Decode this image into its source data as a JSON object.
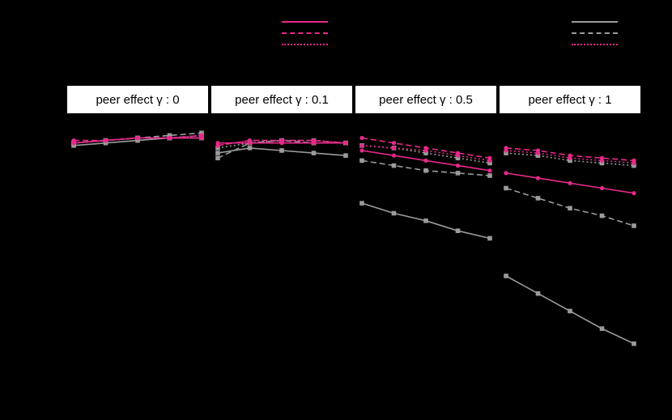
{
  "colors": {
    "background": "#000000",
    "strip_background": "#ffffff",
    "strip_text": "#000000",
    "pink": "#e7298a",
    "gray": "#9b9b9b"
  },
  "legend": {
    "left_keys": [
      {
        "color": "#e7298a",
        "linetype": "solid"
      },
      {
        "color": "#e7298a",
        "linetype": "dashed"
      },
      {
        "color": "#e7298a",
        "linetype": "dotted"
      }
    ],
    "right_keys": [
      {
        "color": "#9b9b9b",
        "linetype": "solid"
      },
      {
        "color": "#9b9b9b",
        "linetype": "dashed"
      },
      {
        "color": "#e7298a",
        "linetype": "dotted"
      }
    ]
  },
  "chart_data": {
    "type": "line",
    "x": [
      1,
      2,
      3,
      4,
      5
    ],
    "ylim": [
      0,
      1
    ],
    "series_defs": [
      {
        "id": "gray-solid",
        "color": "#9b9b9b",
        "linetype": "solid",
        "marker": "square"
      },
      {
        "id": "gray-dashed",
        "color": "#9b9b9b",
        "linetype": "dashed",
        "marker": "square"
      },
      {
        "id": "gray-dotted",
        "color": "#9b9b9b",
        "linetype": "dotted",
        "marker": "square"
      },
      {
        "id": "pink-solid",
        "color": "#e7298a",
        "linetype": "solid",
        "marker": "circle"
      },
      {
        "id": "pink-dashed",
        "color": "#e7298a",
        "linetype": "dashed",
        "marker": "circle"
      },
      {
        "id": "pink-dotted",
        "color": "#e7298a",
        "linetype": "dotted",
        "marker": "circle"
      }
    ],
    "facets": [
      {
        "label": "peer effect γ : 0",
        "values": {
          "pink-solid": [
            0.93,
            0.94,
            0.95,
            0.95,
            0.95
          ],
          "pink-dashed": [
            0.94,
            0.94,
            0.95,
            0.95,
            0.96
          ],
          "pink-dotted": [
            0.93,
            0.94,
            0.95,
            0.95,
            0.96
          ],
          "gray-solid": [
            0.92,
            0.93,
            0.94,
            0.95,
            0.95
          ],
          "gray-dashed": [
            0.93,
            0.94,
            0.95,
            0.96,
            0.97
          ],
          "gray-dotted": [
            0.93,
            0.94,
            0.95,
            0.95,
            0.96
          ]
        }
      },
      {
        "label": "peer effect γ : 0.1",
        "values": {
          "pink-solid": [
            0.93,
            0.93,
            0.93,
            0.93,
            0.93
          ],
          "pink-dashed": [
            0.92,
            0.94,
            0.94,
            0.94,
            0.93
          ],
          "pink-dotted": [
            0.92,
            0.94,
            0.94,
            0.94,
            0.93
          ],
          "gray-solid": [
            0.89,
            0.91,
            0.9,
            0.89,
            0.88
          ],
          "gray-dashed": [
            0.87,
            0.93,
            0.94,
            0.93,
            0.93
          ],
          "gray-dotted": [
            0.91,
            0.93,
            0.94,
            0.94,
            0.93
          ]
        }
      },
      {
        "label": "peer effect γ : 0.5",
        "values": {
          "pink-solid": [
            0.9,
            0.88,
            0.86,
            0.84,
            0.82
          ],
          "pink-dashed": [
            0.95,
            0.93,
            0.91,
            0.89,
            0.87
          ],
          "pink-dotted": [
            0.92,
            0.91,
            0.9,
            0.88,
            0.86
          ],
          "gray-solid": [
            0.69,
            0.65,
            0.62,
            0.58,
            0.55
          ],
          "gray-dashed": [
            0.86,
            0.84,
            0.82,
            0.81,
            0.8
          ],
          "gray-dotted": [
            0.92,
            0.91,
            0.89,
            0.87,
            0.85
          ]
        }
      },
      {
        "label": "peer effect γ : 1",
        "values": {
          "pink-solid": [
            0.81,
            0.79,
            0.77,
            0.75,
            0.73
          ],
          "pink-dashed": [
            0.91,
            0.9,
            0.88,
            0.87,
            0.86
          ],
          "pink-dotted": [
            0.9,
            0.89,
            0.87,
            0.86,
            0.85
          ],
          "gray-solid": [
            0.4,
            0.33,
            0.26,
            0.19,
            0.13
          ],
          "gray-dashed": [
            0.75,
            0.71,
            0.67,
            0.64,
            0.6
          ],
          "gray-dotted": [
            0.89,
            0.88,
            0.86,
            0.85,
            0.84
          ]
        }
      }
    ]
  }
}
